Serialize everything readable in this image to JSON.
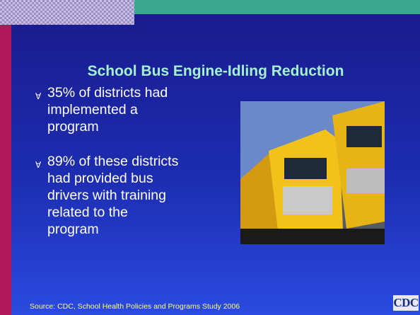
{
  "slide": {
    "title": "School Bus Engine-Idling Reduction",
    "bullets": [
      {
        "lines": [
          "35% of districts had",
          "implemented a",
          "program"
        ]
      },
      {
        "lines": [
          "89% of these districts",
          "had provided bus",
          "drivers with training",
          "related to the",
          "program"
        ]
      }
    ],
    "source": "Source: CDC, School Health Policies and Programs Study 2006",
    "logo": "CDC"
  }
}
